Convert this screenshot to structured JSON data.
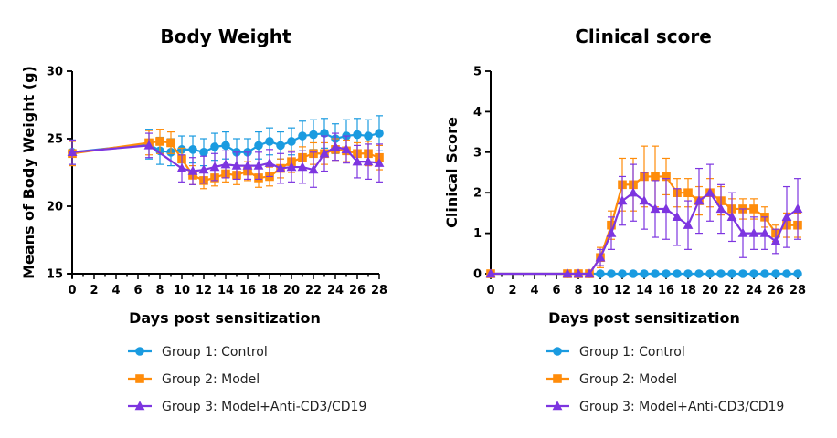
{
  "colors": {
    "group1": "#1a9be0",
    "group2": "#ff8c0a",
    "group3": "#7d35e0"
  },
  "chart_data": [
    {
      "type": "line",
      "title": "Body Weight",
      "xlabel": "Days post sensitization",
      "ylabel": "Means of Body Weight (g)",
      "xlim": [
        0,
        28
      ],
      "ylim": [
        15,
        30
      ],
      "xticks": [
        0,
        2,
        4,
        6,
        8,
        10,
        12,
        14,
        16,
        18,
        20,
        22,
        24,
        26,
        28
      ],
      "yticks": [
        15,
        20,
        25,
        30
      ],
      "legend_position": "bottom",
      "series": [
        {
          "name": "Group 1: Control",
          "marker": "circle",
          "x": [
            0,
            7,
            8,
            9,
            10,
            11,
            12,
            13,
            14,
            15,
            16,
            17,
            18,
            19,
            20,
            21,
            22,
            23,
            24,
            25,
            26,
            27,
            28
          ],
          "values": [
            24.0,
            24.6,
            24.1,
            24.0,
            24.2,
            24.2,
            24.0,
            24.4,
            24.5,
            24.0,
            24.0,
            24.5,
            24.8,
            24.5,
            24.8,
            25.2,
            25.3,
            25.4,
            25.0,
            25.2,
            25.3,
            25.2,
            25.4
          ],
          "errors": [
            0.9,
            1.1,
            1.0,
            1.0,
            1.0,
            1.0,
            1.0,
            1.0,
            1.0,
            1.0,
            1.0,
            1.0,
            1.0,
            1.0,
            1.0,
            1.1,
            1.1,
            1.1,
            1.1,
            1.2,
            1.2,
            1.2,
            1.3
          ]
        },
        {
          "name": "Group 2: Model",
          "marker": "square",
          "x": [
            0,
            7,
            8,
            9,
            10,
            11,
            12,
            13,
            14,
            15,
            16,
            17,
            18,
            19,
            20,
            21,
            22,
            23,
            24,
            25,
            26,
            27,
            28
          ],
          "values": [
            23.9,
            24.7,
            24.8,
            24.7,
            23.5,
            22.3,
            21.9,
            22.1,
            22.4,
            22.3,
            22.6,
            22.1,
            22.2,
            22.8,
            23.3,
            23.6,
            23.9,
            23.9,
            24.2,
            24.1,
            23.9,
            23.9,
            23.6
          ],
          "errors": [
            0.9,
            0.9,
            0.9,
            0.8,
            0.8,
            0.7,
            0.6,
            0.6,
            0.6,
            0.7,
            0.7,
            0.7,
            0.7,
            0.7,
            0.8,
            0.8,
            0.8,
            0.8,
            0.8,
            0.8,
            0.8,
            0.9,
            0.9
          ]
        },
        {
          "name": "Group 3: Model+Anti-CD3/CD19",
          "marker": "triangle",
          "x": [
            0,
            7,
            10,
            11,
            12,
            13,
            14,
            15,
            16,
            17,
            18,
            19,
            20,
            21,
            22,
            23,
            24,
            25,
            26,
            27,
            28
          ],
          "values": [
            24.0,
            24.5,
            22.8,
            22.6,
            22.7,
            22.9,
            23.1,
            23.0,
            23.0,
            23.0,
            23.2,
            22.8,
            22.9,
            22.9,
            22.7,
            23.9,
            24.4,
            24.2,
            23.3,
            23.3,
            23.2
          ],
          "errors": [
            0.9,
            0.9,
            1.0,
            1.0,
            1.0,
            1.0,
            1.0,
            1.0,
            1.0,
            1.0,
            1.0,
            1.1,
            1.1,
            1.2,
            1.3,
            1.3,
            1.0,
            1.0,
            1.2,
            1.3,
            1.4
          ]
        }
      ]
    },
    {
      "type": "line",
      "title": "Clinical score",
      "xlabel": "Days post sensitization",
      "ylabel": "Clinical Score",
      "xlim": [
        0,
        28
      ],
      "ylim": [
        0,
        5
      ],
      "xticks": [
        0,
        2,
        4,
        6,
        8,
        10,
        12,
        14,
        16,
        18,
        20,
        22,
        24,
        26,
        28
      ],
      "yticks": [
        0,
        1,
        2,
        3,
        4,
        5
      ],
      "legend_position": "bottom",
      "series": [
        {
          "name": "Group 1: Control",
          "marker": "circle",
          "x": [
            0,
            7,
            8,
            9,
            10,
            11,
            12,
            13,
            14,
            15,
            16,
            17,
            18,
            19,
            20,
            21,
            22,
            23,
            24,
            25,
            26,
            27,
            28
          ],
          "values": [
            0,
            0,
            0,
            0,
            0,
            0,
            0,
            0,
            0,
            0,
            0,
            0,
            0,
            0,
            0,
            0,
            0,
            0,
            0,
            0,
            0,
            0,
            0
          ],
          "errors": [
            0,
            0,
            0,
            0,
            0,
            0,
            0,
            0,
            0,
            0,
            0,
            0,
            0,
            0,
            0,
            0,
            0,
            0,
            0,
            0,
            0,
            0,
            0
          ]
        },
        {
          "name": "Group 2: Model",
          "marker": "square",
          "x": [
            0,
            7,
            8,
            9,
            10,
            11,
            12,
            13,
            14,
            15,
            16,
            17,
            18,
            19,
            20,
            21,
            22,
            23,
            24,
            25,
            26,
            27,
            28
          ],
          "values": [
            0,
            0,
            0,
            0,
            0.4,
            1.2,
            2.2,
            2.2,
            2.4,
            2.4,
            2.4,
            2.0,
            2.0,
            1.8,
            2.0,
            1.8,
            1.6,
            1.6,
            1.6,
            1.4,
            1.0,
            1.2,
            1.2
          ],
          "errors": [
            0,
            0,
            0,
            0,
            0.25,
            0.35,
            0.65,
            0.65,
            0.75,
            0.75,
            0.45,
            0.35,
            0.35,
            0.35,
            0.35,
            0.35,
            0.25,
            0.25,
            0.25,
            0.25,
            0.2,
            0.3,
            0.3
          ]
        },
        {
          "name": "Group 3: Model+Anti-CD3/CD19",
          "marker": "triangle",
          "x": [
            0,
            7,
            8,
            9,
            10,
            11,
            12,
            13,
            14,
            15,
            16,
            17,
            18,
            19,
            20,
            21,
            22,
            23,
            24,
            25,
            26,
            27,
            28
          ],
          "values": [
            0,
            0,
            0,
            0,
            0.4,
            1.0,
            1.8,
            2.0,
            1.8,
            1.6,
            1.6,
            1.4,
            1.2,
            1.8,
            2.0,
            1.6,
            1.4,
            1.0,
            1.0,
            1.0,
            0.8,
            1.4,
            1.6
          ],
          "errors": [
            0,
            0,
            0,
            0,
            0.2,
            0.4,
            0.6,
            0.7,
            0.7,
            0.7,
            0.75,
            0.7,
            0.6,
            0.8,
            0.7,
            0.6,
            0.6,
            0.6,
            0.4,
            0.4,
            0.3,
            0.75,
            0.75
          ]
        }
      ]
    }
  ]
}
